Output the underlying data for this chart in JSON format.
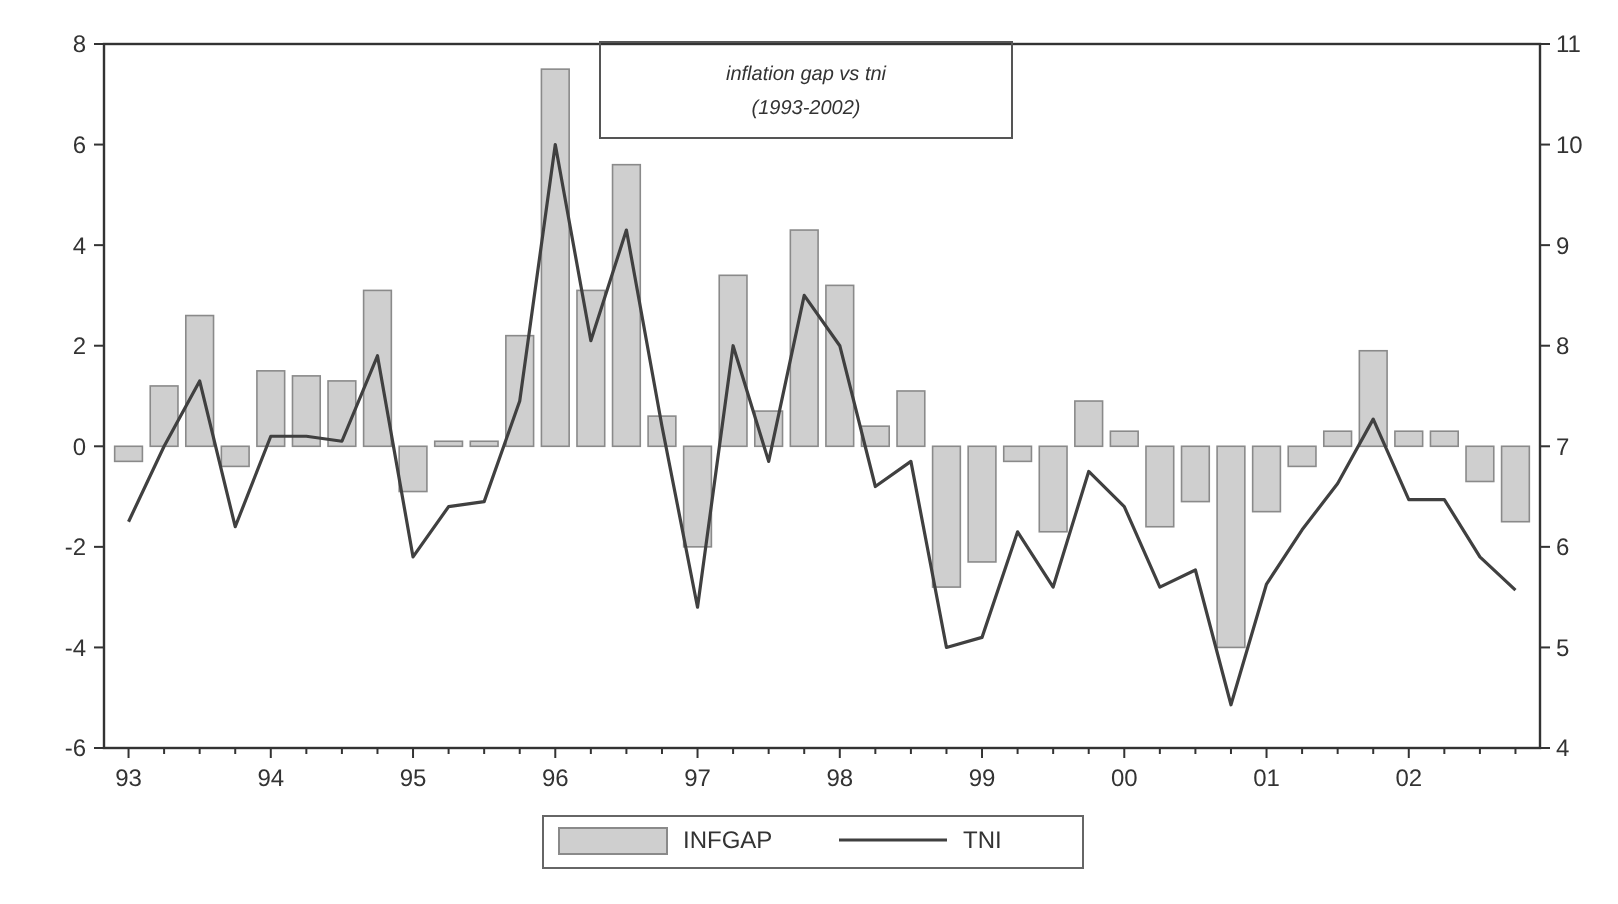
{
  "chart_data": {
    "type": "bar",
    "title": "inflation gap vs tni",
    "subtitle": "(1993-2002)",
    "categories": [
      "93",
      null,
      null,
      null,
      "94",
      null,
      null,
      null,
      "95",
      null,
      null,
      null,
      "96",
      null,
      null,
      null,
      "97",
      null,
      null,
      null,
      "98",
      null,
      null,
      null,
      "99",
      null,
      null,
      null,
      "00",
      null,
      null,
      null,
      "01",
      null,
      null,
      null,
      "02",
      null,
      null,
      null
    ],
    "series": [
      {
        "name": "INFGAP",
        "color": "#cfcfcf",
        "values": [
          -0.3,
          1.2,
          2.6,
          -0.4,
          1.5,
          1.4,
          1.3,
          3.1,
          -0.9,
          0.1,
          0.1,
          2.2,
          7.5,
          3.1,
          5.6,
          0.6,
          -2.0,
          3.4,
          0.7,
          4.3,
          3.2,
          0.4,
          1.1,
          -2.8,
          -2.3,
          -0.3,
          -1.7,
          0.9,
          0.3,
          -1.6,
          -1.1,
          -4.0,
          -1.3,
          -0.4,
          0.3,
          1.9,
          0.3,
          0.3,
          -0.7,
          -1.5
        ]
      },
      {
        "name": "TNI",
        "type": "line",
        "axis": "y2",
        "color": "#404040",
        "values": [
          6.25,
          7.0,
          7.65,
          6.2,
          7.1,
          7.1,
          7.05,
          7.9,
          5.9,
          6.4,
          6.45,
          7.45,
          10.0,
          8.05,
          9.15,
          7.2,
          5.4,
          8.0,
          6.85,
          8.5,
          8.0,
          6.6,
          6.85,
          5.0,
          5.1,
          6.15,
          5.6,
          6.75,
          6.4,
          5.6,
          5.77,
          4.43,
          5.63,
          6.17,
          6.63,
          7.27,
          6.47,
          6.47,
          5.9,
          5.57
        ]
      }
    ],
    "ylim": [
      -6,
      8
    ],
    "yticks": [
      -6,
      -4,
      -2,
      0,
      2,
      4,
      6,
      8
    ],
    "y2lim": [
      4,
      11
    ],
    "y2ticks": [
      4,
      5,
      6,
      7,
      8,
      9,
      10,
      11
    ],
    "grid": false,
    "legend": "bottom",
    "marker": "none",
    "line_style": "solid"
  }
}
